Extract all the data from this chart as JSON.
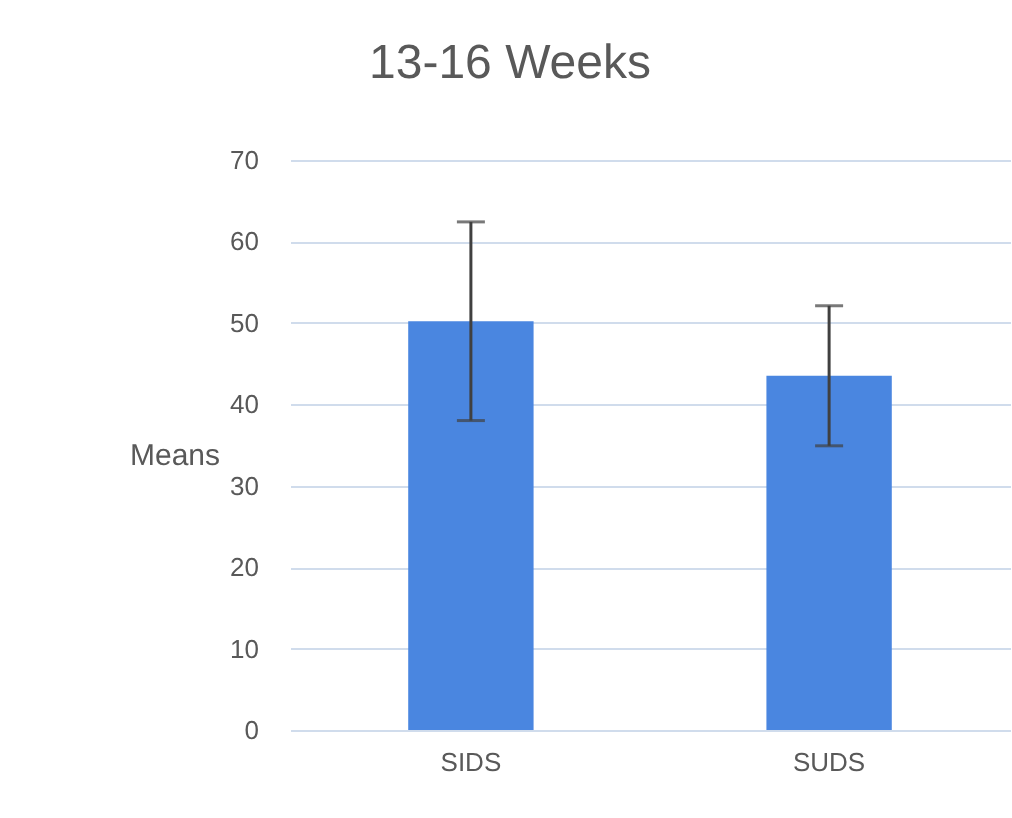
{
  "chart_data": {
    "type": "bar",
    "title": "13-16 Weeks",
    "ylabel": "Means",
    "categories": [
      "SIDS",
      "SUDS"
    ],
    "values": [
      50.2,
      43.5
    ],
    "color": "#4a86e0",
    "errors": [
      12.2,
      8.6
    ],
    "ylim": [
      0,
      70
    ],
    "yticks": [
      0,
      10,
      20,
      30,
      40,
      50,
      60,
      70
    ],
    "grid": "y"
  }
}
